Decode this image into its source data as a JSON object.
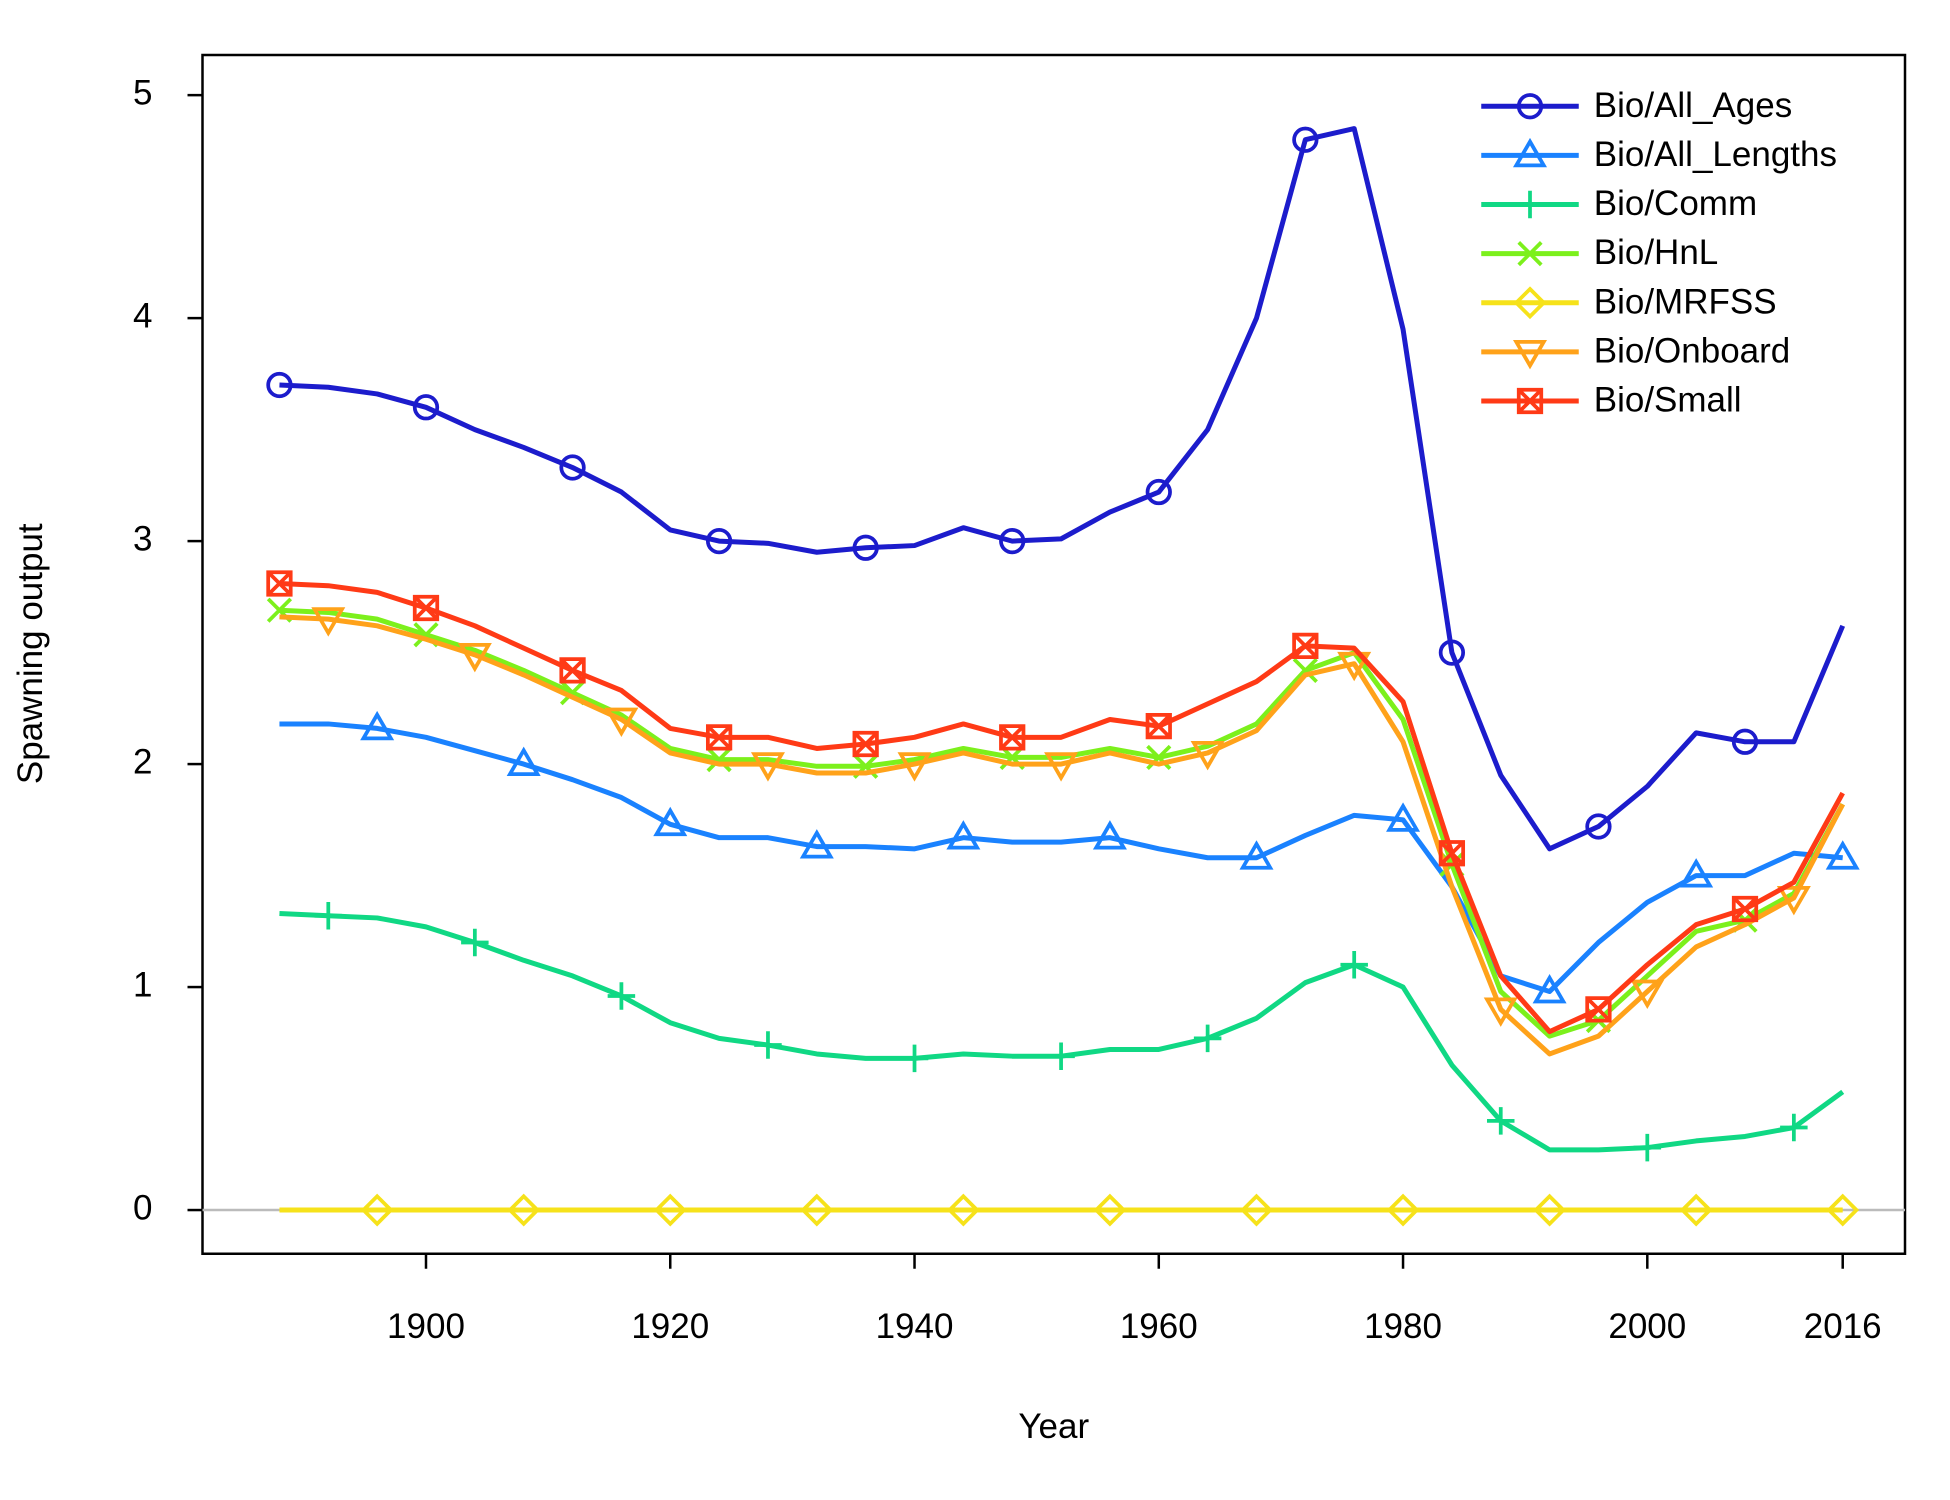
{
  "chart_data": {
    "type": "line",
    "x_label": "Year",
    "y_label": "Spawning output",
    "x": [
      1888,
      1892,
      1896,
      1900,
      1904,
      1908,
      1912,
      1916,
      1920,
      1924,
      1928,
      1932,
      1936,
      1940,
      1944,
      1948,
      1952,
      1956,
      1960,
      1964,
      1968,
      1972,
      1976,
      1980,
      1984,
      1988,
      1992,
      1996,
      2000,
      2004,
      2008,
      2012,
      2016
    ],
    "xlim": [
      1881.7,
      2021.1
    ],
    "xticks": [
      1900,
      1920,
      1940,
      1960,
      1980,
      2000,
      2016
    ],
    "ylim": [
      -0.196,
      5.18
    ],
    "yticks": [
      0,
      1,
      2,
      3,
      4,
      5
    ],
    "reference_line": 0,
    "legend": "topright",
    "series": [
      {
        "name": "Bio/All_Ages",
        "color": "#1c1ccc",
        "marker": "circle",
        "values": [
          3.7,
          3.69,
          3.66,
          3.6,
          3.5,
          3.42,
          3.33,
          3.22,
          3.05,
          3.0,
          2.99,
          2.95,
          2.97,
          2.98,
          3.06,
          3.0,
          3.01,
          3.13,
          3.22,
          3.5,
          4.0,
          4.8,
          4.85,
          3.95,
          2.5,
          1.95,
          1.62,
          1.72,
          1.9,
          2.14,
          2.1,
          2.1,
          2.62
        ]
      },
      {
        "name": "Bio/All_Lengths",
        "color": "#1a82ff",
        "marker": "triangle",
        "values": [
          2.18,
          2.18,
          2.16,
          2.12,
          2.06,
          2.0,
          1.93,
          1.85,
          1.73,
          1.67,
          1.67,
          1.63,
          1.63,
          1.62,
          1.67,
          1.65,
          1.65,
          1.67,
          1.62,
          1.58,
          1.58,
          1.68,
          1.77,
          1.75,
          1.45,
          1.05,
          0.98,
          1.2,
          1.38,
          1.5,
          1.5,
          1.6,
          1.58
        ]
      },
      {
        "name": "Bio/Comm",
        "color": "#10d884",
        "marker": "plus",
        "values": [
          1.33,
          1.32,
          1.31,
          1.27,
          1.2,
          1.12,
          1.05,
          0.96,
          0.84,
          0.77,
          0.74,
          0.7,
          0.68,
          0.68,
          0.7,
          0.69,
          0.69,
          0.72,
          0.72,
          0.77,
          0.86,
          1.02,
          1.1,
          1.0,
          0.65,
          0.4,
          0.27,
          0.27,
          0.28,
          0.31,
          0.33,
          0.37,
          0.53
        ]
      },
      {
        "name": "Bio/HnL",
        "color": "#7cf01c",
        "marker": "cross",
        "values": [
          2.69,
          2.68,
          2.65,
          2.58,
          2.51,
          2.42,
          2.32,
          2.22,
          2.07,
          2.02,
          2.02,
          1.99,
          1.99,
          2.02,
          2.07,
          2.03,
          2.03,
          2.07,
          2.03,
          2.08,
          2.18,
          2.42,
          2.5,
          2.2,
          1.55,
          0.98,
          0.78,
          0.85,
          1.05,
          1.25,
          1.3,
          1.42,
          1.82
        ]
      },
      {
        "name": "Bio/MRFSS",
        "color": "#f6e21a",
        "marker": "diamond",
        "values": [
          0,
          0,
          0,
          0,
          0,
          0,
          0,
          0,
          0,
          0,
          0,
          0,
          0,
          0,
          0,
          0,
          0,
          0,
          0,
          0,
          0,
          0,
          0,
          0,
          0,
          0,
          0,
          0,
          0,
          0,
          0,
          0,
          0
        ]
      },
      {
        "name": "Bio/Onboard",
        "color": "#ffa21a",
        "marker": "down-triangle",
        "values": [
          2.66,
          2.65,
          2.62,
          2.56,
          2.49,
          2.4,
          2.3,
          2.2,
          2.05,
          2.0,
          2.0,
          1.96,
          1.96,
          2.0,
          2.05,
          2.0,
          2.0,
          2.05,
          2.0,
          2.05,
          2.15,
          2.4,
          2.45,
          2.1,
          1.45,
          0.9,
          0.7,
          0.78,
          0.98,
          1.18,
          1.28,
          1.4,
          1.82
        ]
      },
      {
        "name": "Bio/Small",
        "color": "#ff3a16",
        "marker": "square-x",
        "values": [
          2.81,
          2.8,
          2.77,
          2.7,
          2.62,
          2.52,
          2.42,
          2.33,
          2.16,
          2.12,
          2.12,
          2.07,
          2.09,
          2.12,
          2.18,
          2.12,
          2.12,
          2.2,
          2.17,
          2.27,
          2.37,
          2.53,
          2.52,
          2.28,
          1.6,
          1.05,
          0.8,
          0.9,
          1.1,
          1.28,
          1.35,
          1.47,
          1.87
        ]
      }
    ]
  }
}
